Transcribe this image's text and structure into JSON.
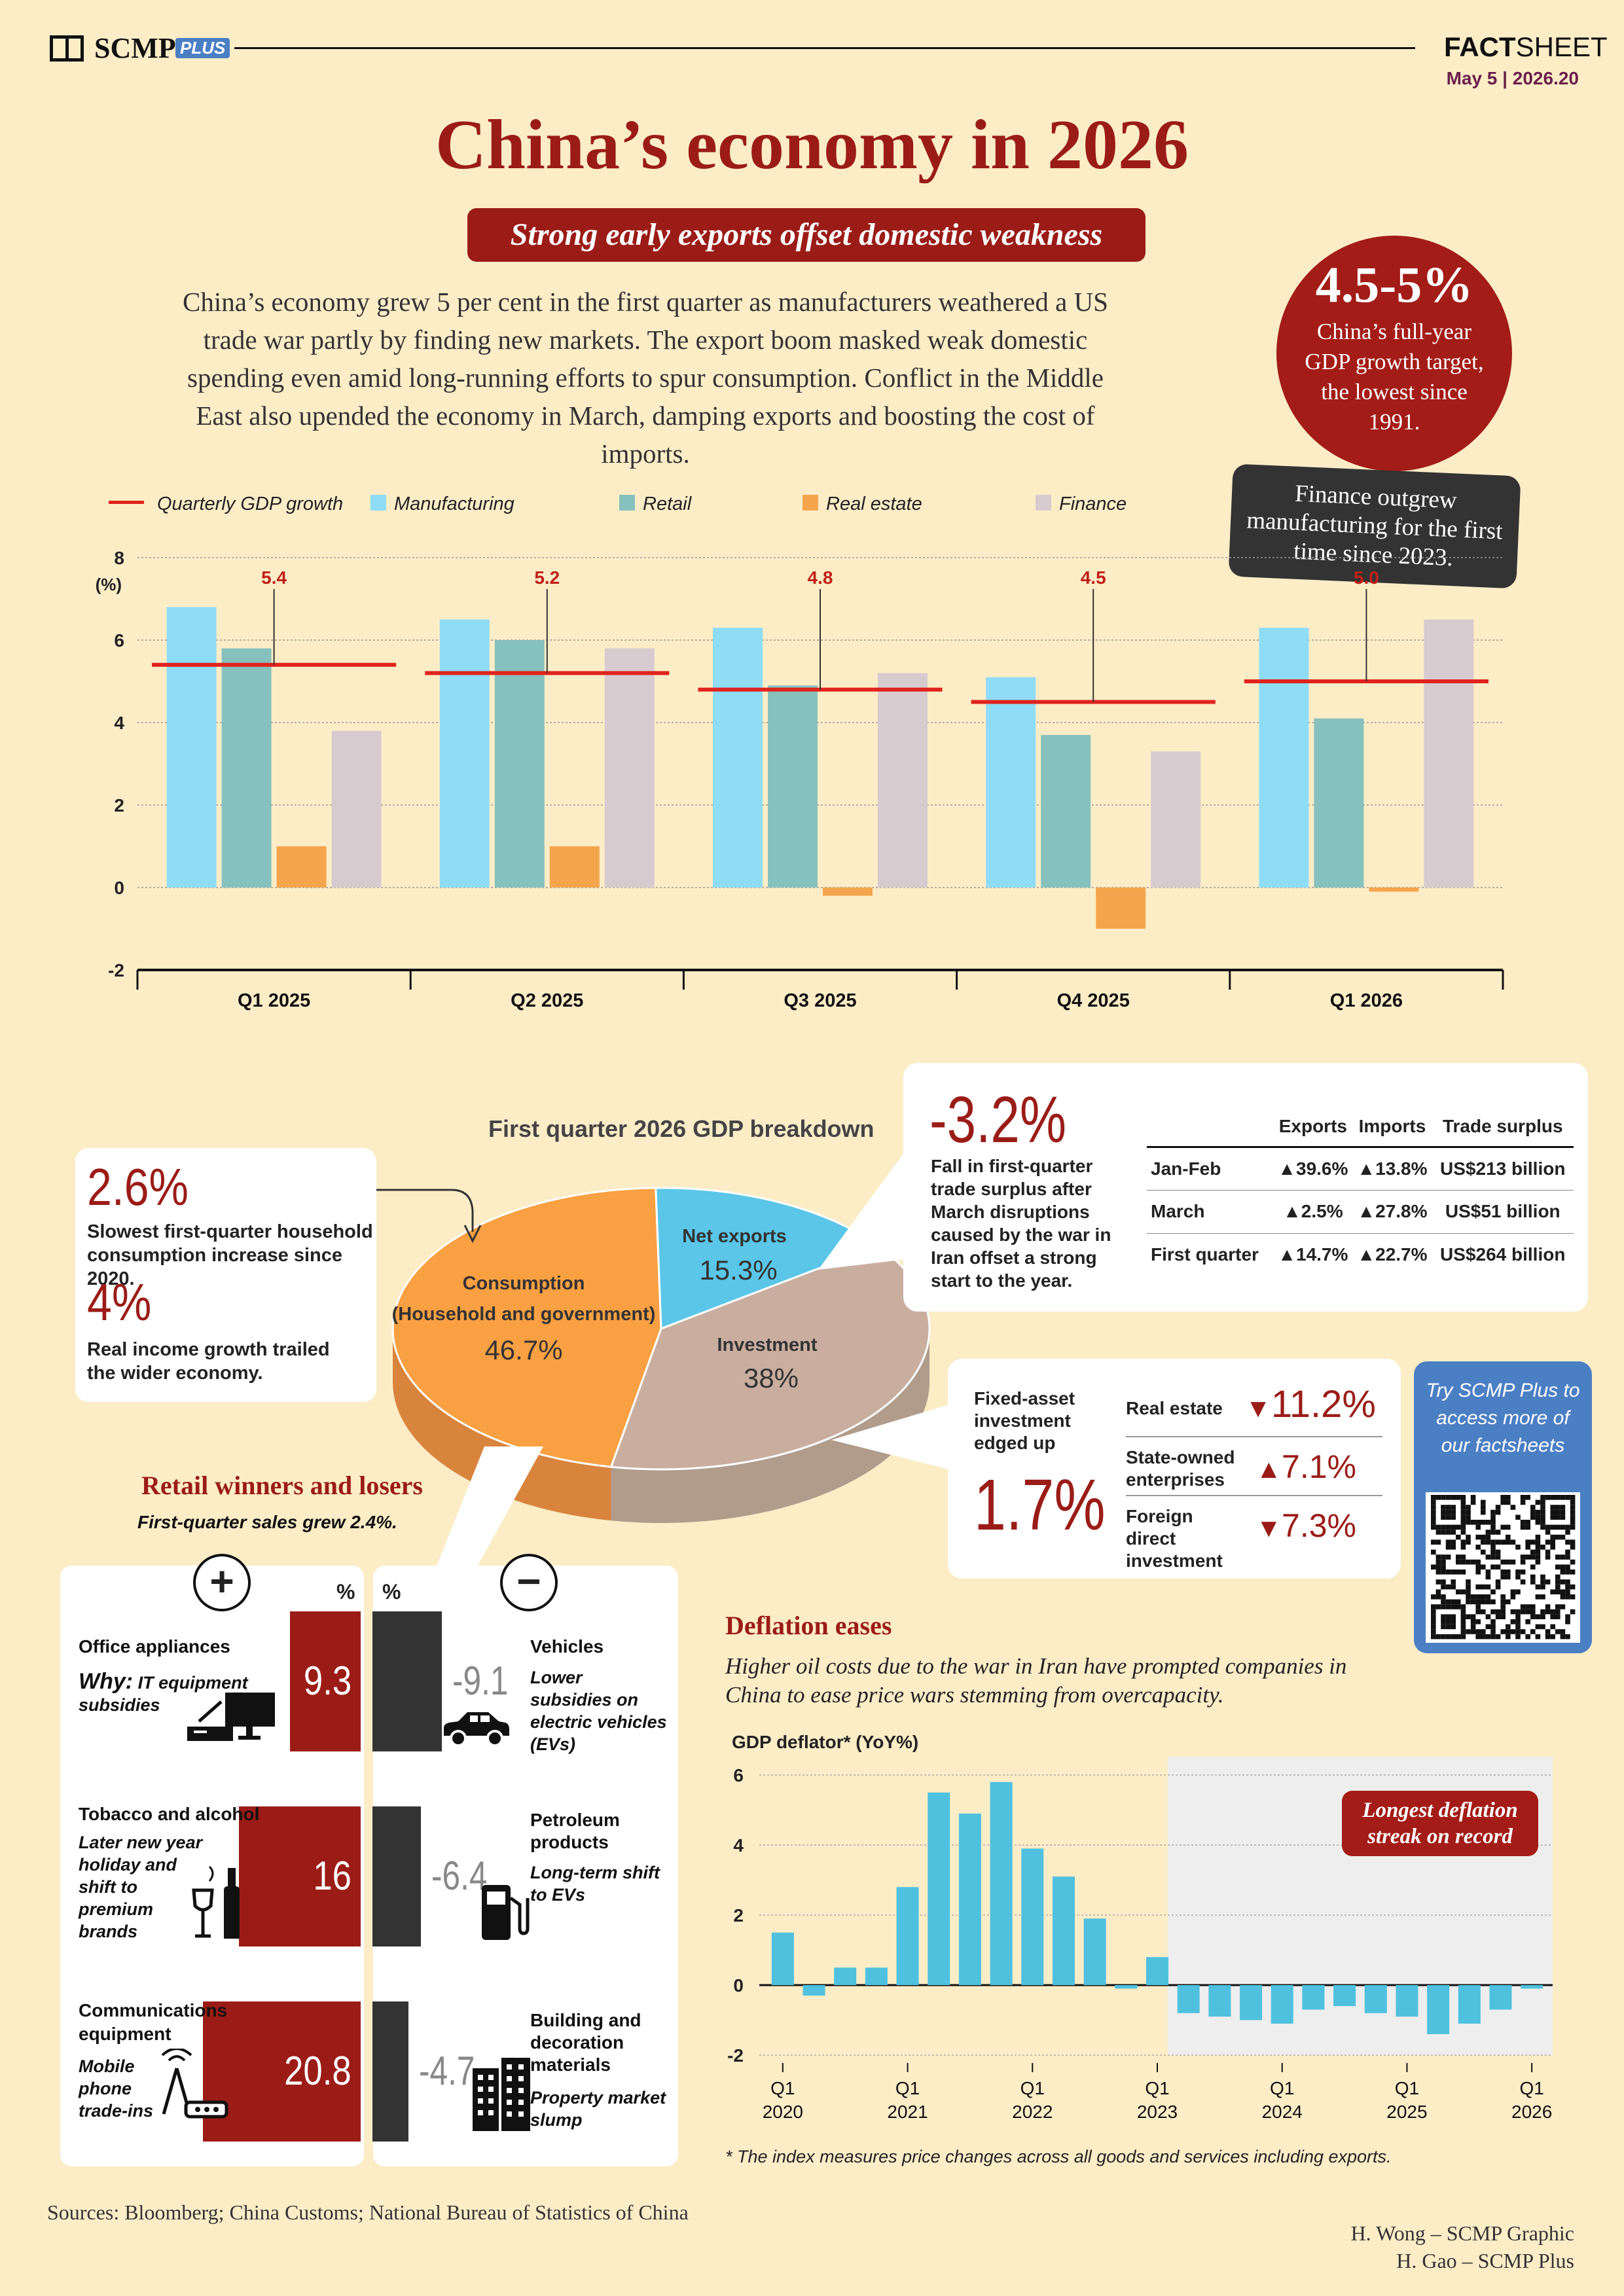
{
  "header": {
    "brand": "SCMP",
    "brand_badge": "PLUS",
    "factsheet_bold": "FACT",
    "factsheet_light": "SHEET",
    "issue": "May 5 | 2026.20"
  },
  "title": "China’s economy in 2026",
  "subtitle": "Strong early exports offset domestic weakness",
  "intro": "China’s economy grew 5 per cent in the first quarter as manufacturers weathered a US trade war partly by finding new markets. The export boom masked weak domestic spending even amid long-running efforts to spur consumption. Conflict in the Middle East also upended the economy in March, damping exports and boosting the cost of imports.",
  "target_badge": {
    "value": "4.5-5%",
    "text": "China’s full-year GDP growth target, the lowest since 1991."
  },
  "finance_note": "Finance outgrew manufacturing for the first time since 2023.",
  "colors": {
    "manufacturing": "#8fdcf7",
    "retail": "#86c1bd",
    "real_estate": "#f5a54d",
    "finance": "#d7cbd0",
    "gdp_line": "#e0231d",
    "accent_red": "#9b1c17",
    "deflator_bar": "#4fc1de"
  },
  "chart_data": [
    {
      "type": "bar",
      "title": "",
      "ylabel": "(%)",
      "ylim": [
        -2,
        8
      ],
      "yticks": [
        "8",
        "6",
        "4",
        "2",
        "0",
        "-2"
      ],
      "categories": [
        "Q1 2025",
        "Q2 2025",
        "Q3 2025",
        "Q4 2025",
        "Q1 2026"
      ],
      "legend": [
        "Quarterly GDP growth",
        "Manufacturing",
        "Retail",
        "Real estate",
        "Finance"
      ],
      "series": [
        {
          "name": "Manufacturing",
          "values": [
            6.8,
            6.5,
            6.3,
            5.1,
            6.3
          ]
        },
        {
          "name": "Retail",
          "values": [
            5.8,
            6.0,
            4.9,
            3.7,
            4.1
          ]
        },
        {
          "name": "Real estate",
          "values": [
            1.0,
            1.0,
            -0.2,
            -1.0,
            -0.1
          ]
        },
        {
          "name": "Finance",
          "values": [
            3.8,
            5.8,
            5.2,
            3.3,
            6.5
          ]
        }
      ],
      "gdp": {
        "name": "Quarterly GDP growth",
        "values": [
          5.4,
          5.2,
          4.8,
          4.5,
          5.0
        ],
        "labels": [
          "5.4",
          "5.2",
          "4.8",
          "4.5",
          "5.0"
        ]
      }
    },
    {
      "type": "pie",
      "title": "First quarter 2026 GDP breakdown",
      "slices": [
        {
          "name": "Consumption",
          "sub": "(Household and government)",
          "value": 46.7,
          "label": "46.7%"
        },
        {
          "name": "Net exports",
          "value": 15.3,
          "label": "15.3%"
        },
        {
          "name": "Investment",
          "value": 38,
          "label": "38%"
        }
      ]
    },
    {
      "type": "bar",
      "title": "GDP deflator* (YoY%)",
      "ylim": [
        -2,
        6
      ],
      "yticks": [
        "6",
        "4",
        "2",
        "0",
        "-2"
      ],
      "x": [
        "Q1 2020",
        "Q2 2020",
        "Q3 2020",
        "Q4 2020",
        "Q1 2021",
        "Q2 2021",
        "Q3 2021",
        "Q4 2021",
        "Q1 2022",
        "Q2 2022",
        "Q3 2022",
        "Q4 2022",
        "Q1 2023",
        "Q2 2023",
        "Q3 2023",
        "Q4 2023",
        "Q1 2024",
        "Q2 2024",
        "Q3 2024",
        "Q4 2024",
        "Q1 2025",
        "Q2 2025",
        "Q3 2025",
        "Q4 2025",
        "Q1 2026"
      ],
      "values": [
        1.5,
        -0.3,
        0.5,
        0.5,
        2.8,
        5.5,
        4.9,
        5.8,
        3.9,
        3.1,
        1.9,
        -0.1,
        0.8,
        -0.8,
        -0.9,
        -1.0,
        -1.1,
        -0.7,
        -0.6,
        -0.8,
        -0.9,
        -1.4,
        -1.1,
        -0.7,
        -0.1
      ],
      "xticks": [
        {
          "q": "Q1",
          "y": "2020"
        },
        {
          "q": "Q1",
          "y": "2021"
        },
        {
          "q": "Q1",
          "y": "2022"
        },
        {
          "q": "Q1",
          "y": "2023"
        },
        {
          "q": "Q1",
          "y": "2024"
        },
        {
          "q": "Q1",
          "y": "2025"
        },
        {
          "q": "Q1",
          "y": "2026"
        }
      ],
      "annotation": "Longest deflation streak on record"
    }
  ],
  "household": {
    "value1": "2.6%",
    "text1": "Slowest first-quarter household consumption increase since 2020.",
    "value2": "4%",
    "text2": "Real income growth trailed the wider economy."
  },
  "trade": {
    "value": "-3.2%",
    "text": "Fall in first-quarter trade surplus after March disruptions caused by the war in Iran offset a strong start to the year.",
    "columns": [
      "Exports",
      "Imports",
      "Trade surplus"
    ],
    "rows": [
      {
        "period": "Jan-Feb",
        "exports": "▲39.6%",
        "imports": "▲13.8%",
        "surplus": "US$213 billion"
      },
      {
        "period": "March",
        "exports": "▲2.5%",
        "imports": "▲27.8%",
        "surplus": "US$51 billion"
      },
      {
        "period": "First quarter",
        "exports": "▲14.7%",
        "imports": "▲22.7%",
        "surplus": "US$264 billion"
      }
    ]
  },
  "investment": {
    "label": "Fixed-asset investment edged up",
    "value": "1.7%",
    "rows": [
      {
        "name": "Real estate",
        "arrow": "▼",
        "value": "11.2%"
      },
      {
        "name": "State-owned enterprises",
        "arrow": "▲",
        "value": "7.1%"
      },
      {
        "name": "Foreign direct investment",
        "arrow": "▼",
        "value": "7.3%"
      }
    ]
  },
  "promo": "Try SCMP Plus to access more of our factsheets",
  "retail": {
    "title": "Retail winners and losers",
    "subtitle": "First-quarter sales grew 2.4%.",
    "plus": "+",
    "minus": "−",
    "unit": "%",
    "winners": [
      {
        "name": "Office appliances",
        "why_label": "Why:",
        "why": "IT equipment subsidies",
        "value": 9.3,
        "label": "9.3",
        "icon": "computer-icon"
      },
      {
        "name": "Tobacco and alcohol",
        "why": "Later new year holiday and shift to premium brands",
        "value": 16,
        "label": "16",
        "icon": "wine-cigarette-icon"
      },
      {
        "name": "Communications equipment",
        "why": "Mobile phone trade-ins",
        "value": 20.8,
        "label": "20.8",
        "icon": "router-icon"
      }
    ],
    "losers": [
      {
        "name": "Vehicles",
        "why": "Lower subsidies on electric vehicles (EVs)",
        "value": -9.1,
        "label": "-9.1",
        "icon": "car-icon"
      },
      {
        "name": "Petroleum products",
        "why": "Long-term shift to EVs",
        "value": -6.4,
        "label": "-6.4",
        "icon": "fuel-pump-icon"
      },
      {
        "name": "Building and decoration materials",
        "why": "Property market slump",
        "value": -4.7,
        "label": "-4.7",
        "icon": "building-icon"
      }
    ]
  },
  "deflation": {
    "title": "Deflation eases",
    "subtitle": "Higher oil costs due to the war in Iran have prompted companies in China to ease price wars stemming from overcapacity.",
    "footnote": "* The index measures price changes across all goods and services including exports."
  },
  "footer": {
    "sources": "Sources: Bloomberg; China Customs; National Bureau of Statistics of China",
    "credit1": "H. Wong – SCMP Graphic",
    "credit2": "H. Gao – SCMP Plus"
  }
}
